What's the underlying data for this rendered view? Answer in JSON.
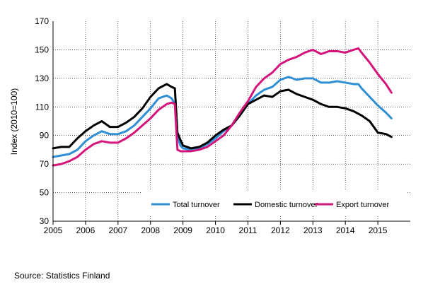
{
  "source_text": "Source:  Statistics Finland",
  "chart_data": {
    "type": "line",
    "title": "",
    "xlabel": "",
    "ylabel": "Index (2010=100)",
    "xlim": [
      2005.0,
      2016.0
    ],
    "ylim": [
      30,
      170
    ],
    "yticks": [
      30,
      50,
      70,
      90,
      110,
      130,
      150,
      170
    ],
    "xticks": [
      "2005",
      "2006",
      "2007",
      "2008",
      "2009",
      "2010",
      "2011",
      "2012",
      "2013",
      "2014",
      "2015"
    ],
    "grid": "vertical",
    "legend_position": "bottom-right",
    "colors": {
      "Total turnover": "#2e8fd4",
      "Domestic turnover": "#000000",
      "Export turnover": "#d4147a",
      "grid": "#000000"
    },
    "series": [
      {
        "name": "Total turnover",
        "x": [
          2005.0,
          2005.25,
          2005.5,
          2005.75,
          2006.0,
          2006.25,
          2006.5,
          2006.75,
          2007.0,
          2007.25,
          2007.5,
          2007.75,
          2008.0,
          2008.25,
          2008.5,
          2008.65,
          2008.75,
          2008.83,
          2008.92,
          2009.0,
          2009.25,
          2009.5,
          2009.75,
          2010.0,
          2010.25,
          2010.5,
          2010.75,
          2011.0,
          2011.25,
          2011.5,
          2011.75,
          2012.0,
          2012.25,
          2012.5,
          2012.75,
          2013.0,
          2013.25,
          2013.5,
          2013.75,
          2014.0,
          2014.25,
          2014.4,
          2014.5,
          2014.75,
          2015.0,
          2015.25,
          2015.42
        ],
        "y": [
          75,
          76,
          77,
          80,
          86,
          90,
          93,
          91,
          91,
          93,
          97,
          103,
          109,
          116,
          118,
          116,
          112,
          90,
          83,
          81,
          80,
          81,
          84,
          88,
          93,
          97,
          104,
          112,
          118,
          122,
          124,
          129,
          131,
          129,
          130,
          130,
          127,
          127,
          128,
          127,
          126,
          126,
          123,
          117,
          111,
          106,
          102
        ]
      },
      {
        "name": "Domestic turnover",
        "x": [
          2005.0,
          2005.25,
          2005.5,
          2005.75,
          2006.0,
          2006.25,
          2006.5,
          2006.75,
          2007.0,
          2007.25,
          2007.5,
          2007.75,
          2008.0,
          2008.25,
          2008.5,
          2008.65,
          2008.75,
          2008.83,
          2008.92,
          2009.0,
          2009.25,
          2009.5,
          2009.75,
          2010.0,
          2010.25,
          2010.5,
          2010.75,
          2011.0,
          2011.25,
          2011.5,
          2011.75,
          2012.0,
          2012.25,
          2012.5,
          2012.75,
          2013.0,
          2013.25,
          2013.5,
          2013.75,
          2014.0,
          2014.25,
          2014.5,
          2014.75,
          2015.0,
          2015.25,
          2015.42
        ],
        "y": [
          81,
          82,
          82,
          88,
          93,
          97,
          100,
          96,
          96,
          99,
          103,
          109,
          117,
          123,
          126,
          124,
          123,
          92,
          87,
          83,
          81,
          82,
          85,
          90,
          94,
          97,
          104,
          112,
          115,
          118,
          117,
          121,
          122,
          119,
          117,
          115,
          112,
          110,
          110,
          109,
          107,
          104,
          100,
          92,
          91,
          89
        ]
      },
      {
        "name": "Export turnover",
        "x": [
          2005.0,
          2005.25,
          2005.5,
          2005.75,
          2006.0,
          2006.25,
          2006.5,
          2006.75,
          2007.0,
          2007.25,
          2007.5,
          2007.75,
          2008.0,
          2008.25,
          2008.5,
          2008.65,
          2008.75,
          2008.83,
          2008.92,
          2009.0,
          2009.25,
          2009.5,
          2009.75,
          2010.0,
          2010.25,
          2010.5,
          2010.75,
          2011.0,
          2011.25,
          2011.5,
          2011.75,
          2012.0,
          2012.25,
          2012.5,
          2012.75,
          2013.0,
          2013.25,
          2013.5,
          2013.75,
          2014.0,
          2014.25,
          2014.4,
          2014.5,
          2014.75,
          2015.0,
          2015.25,
          2015.42
        ],
        "y": [
          69,
          70,
          72,
          75,
          80,
          84,
          86,
          85,
          85,
          88,
          92,
          97,
          102,
          108,
          112,
          113,
          112,
          80,
          79,
          79,
          79,
          80,
          82,
          86,
          90,
          97,
          106,
          114,
          124,
          130,
          134,
          140,
          143,
          145,
          148,
          150,
          147,
          149,
          149,
          148,
          150,
          151,
          148,
          141,
          133,
          126,
          120
        ]
      }
    ]
  }
}
